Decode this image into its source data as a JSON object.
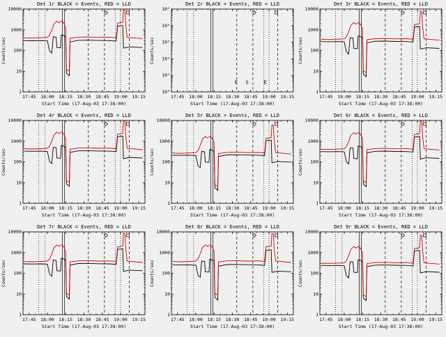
{
  "chart_data": {
    "type": "line",
    "description": "3x3 grid of detector count-rate time plots, log y-scale",
    "background": "#f0f0f0",
    "x_axis": {
      "label": "Start Time (17-Aug-03 17:38:00)",
      "lim": [
        17.6667,
        19.3333
      ],
      "tick_positions": [
        17.75,
        18.0,
        18.25,
        18.5,
        18.75,
        19.0,
        19.25
      ],
      "tick_labels": [
        "17:45",
        "18:00",
        "18:15",
        "18:30",
        "18:45",
        "19:00",
        "19:15"
      ]
    },
    "y_axis": {
      "label": "Counts/sec"
    },
    "colors": {
      "events": "#000000",
      "lld": "#d00000",
      "frame": "#000000"
    },
    "legend_note": "BLACK = Events, RED = LLD",
    "vlines": [
      {
        "x": 17.88,
        "style": "dotted"
      },
      {
        "x": 17.97,
        "style": "dotted"
      },
      {
        "x": 18.205,
        "style": "solid"
      },
      {
        "x": 18.235,
        "style": "solid"
      },
      {
        "x": 18.56,
        "style": "dashed"
      },
      {
        "x": 18.78,
        "style": "dashed"
      },
      {
        "x": 18.93,
        "style": "dotted"
      },
      {
        "x": 19.0,
        "style": "dotted"
      },
      {
        "x": 19.12,
        "style": "dashed"
      }
    ],
    "top_markers": [
      {
        "x": 18.8,
        "shape": "diamond"
      },
      {
        "x": 19.1,
        "shape": "square"
      }
    ],
    "base_series": {
      "events": [
        [
          17.68,
          300
        ],
        [
          17.8,
          295
        ],
        [
          17.92,
          300
        ],
        [
          18.0,
          290
        ],
        [
          18.03,
          95
        ],
        [
          18.06,
          75
        ],
        [
          18.08,
          460
        ],
        [
          18.12,
          440
        ],
        [
          18.13,
          140
        ],
        [
          18.18,
          135
        ],
        [
          18.19,
          560
        ],
        [
          18.23,
          520
        ],
        [
          18.25,
          440
        ],
        [
          18.26,
          8
        ],
        [
          18.3,
          6
        ],
        [
          18.31,
          260
        ],
        [
          18.42,
          310
        ],
        [
          18.55,
          315
        ],
        [
          18.7,
          305
        ],
        [
          18.85,
          300
        ],
        [
          18.94,
          285
        ],
        [
          18.96,
          1500
        ],
        [
          19.03,
          1600
        ],
        [
          19.04,
          130
        ],
        [
          19.12,
          150
        ],
        [
          19.3,
          140
        ]
      ],
      "lld": [
        [
          17.68,
          410
        ],
        [
          17.8,
          400
        ],
        [
          17.92,
          415
        ],
        [
          18.0,
          430
        ],
        [
          18.03,
          540
        ],
        [
          18.06,
          950
        ],
        [
          18.09,
          1900
        ],
        [
          18.13,
          2600
        ],
        [
          18.16,
          2200
        ],
        [
          18.2,
          2700
        ],
        [
          18.23,
          1900
        ],
        [
          18.25,
          1300
        ],
        [
          18.26,
          12
        ],
        [
          18.3,
          10
        ],
        [
          18.31,
          390
        ],
        [
          18.42,
          440
        ],
        [
          18.55,
          450
        ],
        [
          18.7,
          430
        ],
        [
          18.85,
          440
        ],
        [
          18.94,
          410
        ],
        [
          18.96,
          2100
        ],
        [
          19.03,
          2300
        ],
        [
          19.04,
          9500
        ],
        [
          19.06,
          8800
        ],
        [
          19.07,
          1800
        ],
        [
          19.09,
          430
        ],
        [
          19.3,
          370
        ]
      ]
    },
    "panels": [
      {
        "id": "det-1r",
        "title": "Det 1r BLACK = Events, RED = LLD",
        "ylim": [
          1,
          10000
        ],
        "ytick_labels": [
          "1",
          "10",
          "100",
          "1000",
          "10000"
        ],
        "series": [
          {
            "name": "Events",
            "color": "events",
            "base": "events",
            "scale": 1.0
          },
          {
            "name": "LLD",
            "color": "lld",
            "base": "lld",
            "scale": 1.0
          }
        ]
      },
      {
        "id": "det-2r",
        "title": "Det 2r BLACK = Events, RED = LLD",
        "ylim": [
          1,
          100000
        ],
        "ytick_labels": [
          "10⁰",
          "10¹",
          "10²",
          "10³",
          "10⁴",
          "10⁵"
        ],
        "series": [],
        "annotations": [
          {
            "x": 18.55,
            "y": 3,
            "text": "F"
          },
          {
            "x": 18.7,
            "y": 3,
            "text": "S"
          },
          {
            "x": 18.95,
            "y": 3,
            "text": "E"
          }
        ]
      },
      {
        "id": "det-3r",
        "title": "Det 3r BLACK = Events, RED = LLD",
        "ylim": [
          1,
          10000
        ],
        "ytick_labels": [
          "1",
          "10",
          "100",
          "1000",
          "10000"
        ],
        "series": [
          {
            "name": "Events",
            "color": "events",
            "base": "events",
            "scale": 0.9
          },
          {
            "name": "LLD",
            "color": "lld",
            "base": "lld",
            "scale": 0.85
          }
        ]
      },
      {
        "id": "det-4r",
        "title": "Det 4r BLACK = Events, RED = LLD",
        "ylim": [
          1,
          10000
        ],
        "ytick_labels": [
          "1",
          "10",
          "100",
          "1000",
          "10000"
        ],
        "series": [
          {
            "name": "Events",
            "color": "events",
            "base": "events",
            "scale": 1.1
          },
          {
            "name": "LLD",
            "color": "lld",
            "base": "lld",
            "scale": 1.05
          }
        ]
      },
      {
        "id": "det-5r",
        "title": "Det 5r BLACK = Events, RED = LLD",
        "ylim": [
          1,
          10000
        ],
        "ytick_labels": [
          "1",
          "10",
          "100",
          "1000",
          "10000"
        ],
        "series": [
          {
            "name": "Events",
            "color": "events",
            "base": "events",
            "scale": 0.7
          },
          {
            "name": "LLD",
            "color": "lld",
            "base": "lld",
            "scale": 0.65
          }
        ]
      },
      {
        "id": "det-6r",
        "title": "Det 6r BLACK = Events, RED = LLD",
        "ylim": [
          1,
          10000
        ],
        "ytick_labels": [
          "1",
          "10",
          "100",
          "1000",
          "10000"
        ],
        "series": [
          {
            "name": "Events",
            "color": "events",
            "base": "events",
            "scale": 1.05
          },
          {
            "name": "LLD",
            "color": "lld",
            "base": "lld",
            "scale": 1.0
          }
        ]
      },
      {
        "id": "det-7r",
        "title": "Det 7r BLACK = Events, RED = LLD",
        "ylim": [
          1,
          10000
        ],
        "ytick_labels": [
          "1",
          "10",
          "100",
          "1000",
          "10000"
        ],
        "series": [
          {
            "name": "Events",
            "color": "events",
            "base": "events",
            "scale": 0.95
          },
          {
            "name": "LLD",
            "color": "lld",
            "base": "lld",
            "scale": 0.9
          }
        ]
      },
      {
        "id": "det-8r",
        "title": "Det 8r BLACK = Events, RED = LLD",
        "ylim": [
          1,
          10000
        ],
        "ytick_labels": [
          "1",
          "10",
          "100",
          "1000",
          "10000"
        ],
        "series": [
          {
            "name": "Events",
            "color": "events",
            "base": "events",
            "scale": 0.85
          },
          {
            "name": "LLD",
            "color": "lld",
            "base": "lld",
            "scale": 0.9
          }
        ]
      },
      {
        "id": "det-9r",
        "title": "Det 9r BLACK = Events, RED = LLD",
        "ylim": [
          1,
          10000
        ],
        "ytick_labels": [
          "1",
          "10",
          "100",
          "1000",
          "10000"
        ],
        "series": [
          {
            "name": "Events",
            "color": "events",
            "base": "events",
            "scale": 0.8
          },
          {
            "name": "LLD",
            "color": "lld",
            "base": "lld",
            "scale": 0.75
          }
        ]
      }
    ]
  }
}
